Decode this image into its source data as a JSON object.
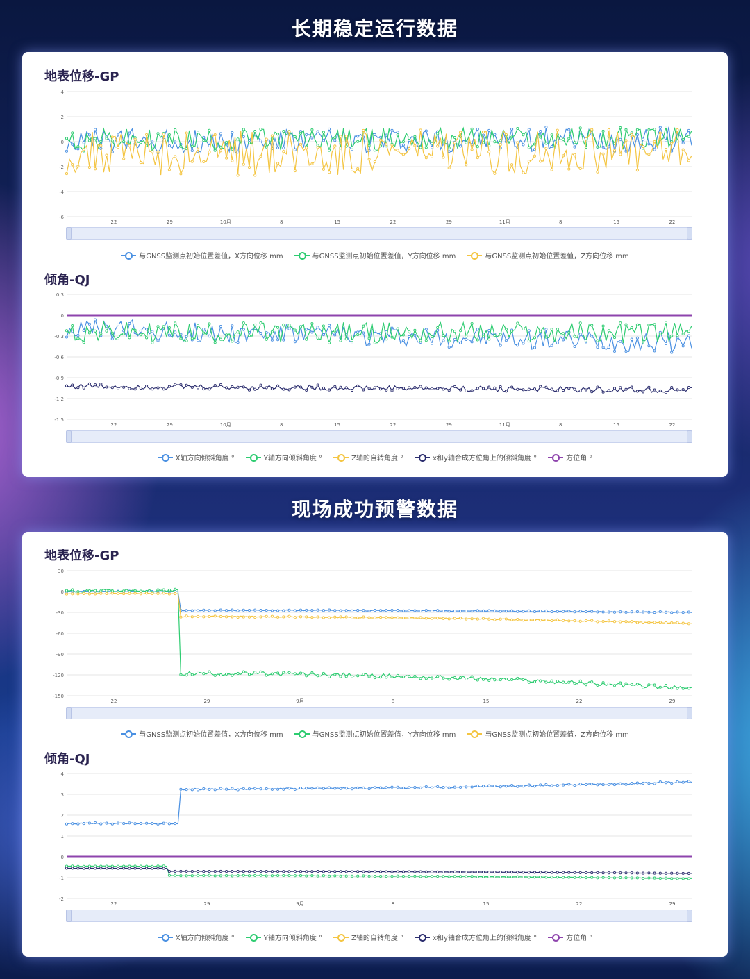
{
  "section1_title": "长期稳定运行数据",
  "section2_title": "现场成功预警数据",
  "colors": {
    "x": "#4a90e2",
    "y": "#2ecc71",
    "z": "#f4c542",
    "combined": "#2b2d6e",
    "azimuth": "#8e44ad"
  },
  "legends": {
    "gp": [
      "与GNSS监测点初始位置差值，X方向位移 mm",
      "与GNSS监测点初始位置差值，Y方向位移 mm",
      "与GNSS监测点初始位置差值，Z方向位移 mm"
    ],
    "qj": [
      "X轴方向倾斜角度 °",
      "Y轴方向倾斜角度 °",
      "Z轴的自转角度 °",
      "x和y轴合成方位角上的倾斜角度 °",
      "方位角 °"
    ]
  },
  "chart_data": [
    {
      "id": "c1",
      "type": "line",
      "title": "地表位移-GP",
      "xlabel": "",
      "ylabel": "",
      "ylim": [
        -6,
        4
      ],
      "yticks": [
        "4",
        "2",
        "0",
        "-2",
        "-4",
        "-6"
      ],
      "xticks": [
        "22",
        "29",
        "10月",
        "8",
        "15",
        "22",
        "29",
        "11月",
        "8",
        "15",
        "22"
      ],
      "series": [
        {
          "name": "与GNSS监测点初始位置差值，X方向位移 mm",
          "pattern": "noise",
          "base": 0.0,
          "amp": 1.0,
          "trend": 0.2
        },
        {
          "name": "与GNSS监测点初始位置差值，Y方向位移 mm",
          "pattern": "noise",
          "base": 0.1,
          "amp": 0.9,
          "trend": 0.2
        },
        {
          "name": "与GNSS监测点初始位置差值，Z方向位移 mm",
          "pattern": "noise",
          "base": -1.0,
          "amp": 1.8,
          "trend": 0.3
        }
      ]
    },
    {
      "id": "c2",
      "type": "line",
      "title": "倾角-QJ",
      "xlabel": "",
      "ylabel": "",
      "ylim": [
        -1.5,
        0.3
      ],
      "yticks": [
        "0.3",
        "0",
        "-0.3",
        "-0.6",
        "-0.9",
        "-1.2",
        "-1.5"
      ],
      "xticks": [
        "22",
        "29",
        "10月",
        "8",
        "15",
        "22",
        "29",
        "11月",
        "8",
        "15",
        "22"
      ],
      "series": [
        {
          "name": "X轴方向倾斜角度 °",
          "pattern": "noise",
          "base": -0.2,
          "amp": 0.15,
          "trend": -0.2
        },
        {
          "name": "Y轴方向倾斜角度 °",
          "pattern": "noise",
          "base": -0.25,
          "amp": 0.15,
          "trend": 0
        },
        {
          "name": "Z轴的自转角度 °",
          "pattern": "none"
        },
        {
          "name": "x和y轴合成方位角上的倾斜角度 °",
          "pattern": "noise",
          "base": -1.02,
          "amp": 0.04,
          "trend": -0.06
        },
        {
          "name": "方位角 °",
          "pattern": "const",
          "base": 0.0
        }
      ]
    },
    {
      "id": "c3",
      "type": "line",
      "title": "地表位移-GP",
      "xlabel": "",
      "ylabel": "",
      "ylim": [
        -150,
        30
      ],
      "yticks": [
        "30",
        "0",
        "-30",
        "-60",
        "-90",
        "-120",
        "-150"
      ],
      "xticks": [
        "22",
        "29",
        "9月",
        "8",
        "15",
        "22",
        "29"
      ],
      "series": [
        {
          "name": "与GNSS监测点初始位置差值，X方向位移 mm",
          "pattern": "step",
          "before": 0,
          "after": -27,
          "end": -30,
          "stepAt": 0.18
        },
        {
          "name": "与GNSS监测点初始位置差值，Y方向位移 mm",
          "pattern": "step",
          "before": 1,
          "after": -118,
          "end": -140,
          "stepAt": 0.18
        },
        {
          "name": "与GNSS监测点初始位置差值，Z方向位移 mm",
          "pattern": "step",
          "before": -3,
          "after": -36,
          "end": -46,
          "stepAt": 0.18
        }
      ]
    },
    {
      "id": "c4",
      "type": "line",
      "title": "倾角-QJ",
      "xlabel": "",
      "ylabel": "",
      "ylim": [
        -2,
        4
      ],
      "yticks": [
        "4",
        "3",
        "2",
        "1",
        "0",
        "-1",
        "-2"
      ],
      "xticks": [
        "22",
        "29",
        "9月",
        "8",
        "15",
        "22",
        "29"
      ],
      "series": [
        {
          "name": "X轴方向倾斜角度 °",
          "pattern": "step",
          "before": 1.6,
          "after": 3.25,
          "end": 3.6,
          "stepAt": 0.18
        },
        {
          "name": "Y轴方向倾斜角度 °",
          "pattern": "step",
          "before": -0.45,
          "after": -0.9,
          "end": -1.05,
          "stepAt": 0.16
        },
        {
          "name": "Z轴的自转角度 °",
          "pattern": "none"
        },
        {
          "name": "x和y轴合成方位角上的倾斜角度 °",
          "pattern": "step",
          "before": -0.55,
          "after": -0.7,
          "end": -0.8,
          "stepAt": 0.16
        },
        {
          "name": "方位角 °",
          "pattern": "const",
          "base": 0.0
        }
      ]
    }
  ]
}
